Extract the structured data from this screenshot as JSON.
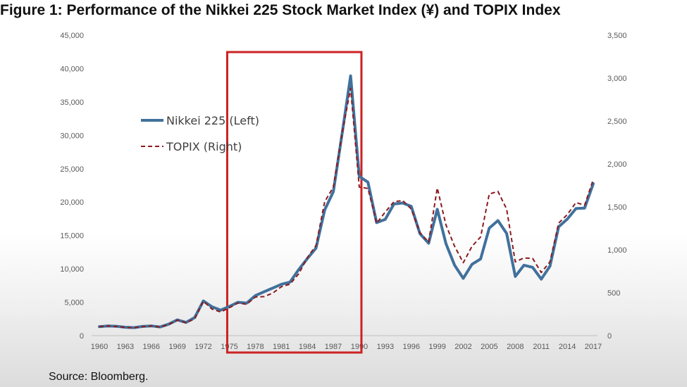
{
  "title": "Figure 1: Performance of the Nikkei 225 Stock Market Index (¥) and TOPIX Index",
  "source": "Source: Bloomberg.",
  "colors": {
    "nikkei": "#41719c",
    "topix": "#8b1a1f",
    "highlight_box": "#cc2222",
    "grid": "#d9d9d9"
  },
  "chart_data": {
    "type": "line",
    "title": "Figure 1: Performance of the Nikkei 225 Stock Market Index (¥) and TOPIX Index",
    "xlabel": "",
    "ylabel_left": "",
    "ylabel_right": "",
    "x_tick_labels": [
      "1960",
      "1963",
      "1966",
      "1969",
      "1972",
      "1975",
      "1978",
      "1981",
      "1984",
      "1987",
      "1990",
      "1993",
      "1996",
      "1999",
      "2002",
      "2005",
      "2008",
      "2011",
      "2014",
      "2017"
    ],
    "y_left_tick_labels": [
      "0",
      "5,000",
      "10,000",
      "15,000",
      "20,000",
      "25,000",
      "30,000",
      "35,000",
      "40,000",
      "45,000"
    ],
    "y_right_tick_labels": [
      "0",
      "500",
      "1,000",
      "1,500",
      "2,000",
      "2,500",
      "3,000",
      "3,500"
    ],
    "y_left_lim": [
      0,
      45000
    ],
    "y_right_lim": [
      0,
      3500
    ],
    "grid": false,
    "legend": "upper-left",
    "highlight_range": [
      1975,
      1990
    ],
    "x": [
      1960,
      1961,
      1962,
      1963,
      1964,
      1965,
      1966,
      1967,
      1968,
      1969,
      1970,
      1971,
      1972,
      1973,
      1974,
      1975,
      1976,
      1977,
      1978,
      1979,
      1980,
      1981,
      1982,
      1983,
      1984,
      1985,
      1986,
      1987,
      1988,
      1989,
      1990,
      1991,
      1992,
      1993,
      1994,
      1995,
      1996,
      1997,
      1998,
      1999,
      2000,
      2001,
      2002,
      2003,
      2004,
      2005,
      2006,
      2007,
      2008,
      2009,
      2010,
      2011,
      2012,
      2013,
      2014,
      2015,
      2016,
      2017
    ],
    "series": [
      {
        "name": "Nikkei 225 (Left)",
        "axis": "left",
        "style": "solid",
        "values": [
          1350,
          1440,
          1400,
          1250,
          1200,
          1380,
          1450,
          1300,
          1720,
          2360,
          1980,
          2720,
          5200,
          4320,
          3830,
          4370,
          5000,
          4870,
          6000,
          6570,
          7120,
          7680,
          8020,
          9900,
          11540,
          13110,
          18820,
          21560,
          30160,
          38910,
          23850,
          22980,
          16920,
          17420,
          19720,
          19870,
          19360,
          15260,
          13840,
          18930,
          13780,
          10540,
          8580,
          10680,
          11490,
          16110,
          17230,
          15310,
          8860,
          10550,
          10230,
          8460,
          10400,
          16290,
          17450,
          19030,
          19110,
          22760
        ]
      },
      {
        "name": "TOPIX (Right)",
        "axis": "right",
        "style": "dashed",
        "values": [
          105,
          112,
          106,
          95,
          92,
          105,
          112,
          100,
          130,
          180,
          150,
          195,
          400,
          310,
          275,
          325,
          380,
          365,
          450,
          455,
          495,
          570,
          600,
          720,
          910,
          1050,
          1560,
          1730,
          2350,
          2880,
          1730,
          1715,
          1310,
          1440,
          1560,
          1575,
          1475,
          1200,
          1090,
          1720,
          1290,
          1040,
          850,
          1040,
          1150,
          1650,
          1680,
          1475,
          860,
          905,
          900,
          735,
          860,
          1310,
          1410,
          1550,
          1520,
          1820
        ]
      }
    ]
  }
}
